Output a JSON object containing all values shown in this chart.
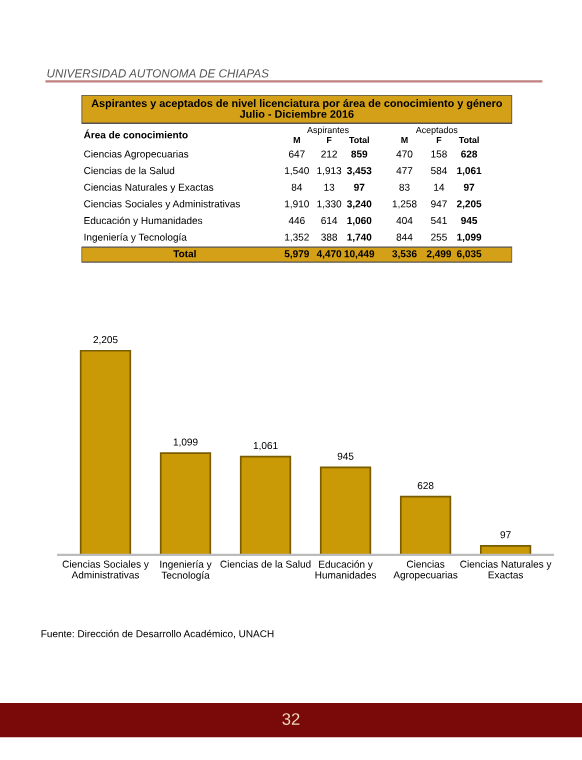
{
  "chart_data": [
    {
      "type": "other",
      "title": "Aspirantes y aceptados de nivel licenciatura por área de conocimiento y género",
      "subtitle": "Julio - Diciembre 2016",
      "annotations": [
        "UNIVERSIDAD AUTONOMA DE CHIAPAS",
        "Área de conocimiento",
        "Aspirantes",
        "Aceptados"
      ],
      "categories": [
        "M",
        "F",
        "Total",
        "M",
        "F",
        "Total"
      ],
      "y_categories": [
        "Ciencias Agropecuarias",
        "Ciencias de la Salud",
        "Ciencias Naturales y Exactas",
        "Ciencias Sociales y Administrativas",
        "Educación y Humanidades",
        "Ingeniería y Tecnología",
        "Total"
      ],
      "cell_labels": [
        [
          "647",
          "212",
          "859",
          "470",
          "158",
          "628"
        ],
        [
          "1,540",
          "1,913",
          "3,453",
          "477",
          "584",
          "1,061"
        ],
        [
          "84",
          "13",
          "97",
          "83",
          "14",
          "97"
        ],
        [
          "1,910",
          "1,330",
          "3,240",
          "1,258",
          "947",
          "2,205"
        ],
        [
          "446",
          "614",
          "1,060",
          "404",
          "541",
          "945"
        ],
        [
          "1,352",
          "388",
          "1,740",
          "844",
          "255",
          "1,099"
        ],
        [
          "5,979",
          "4,470",
          "10,449",
          "3,536",
          "2,499",
          "6,035"
        ]
      ],
      "color": "#d4a017"
    },
    {
      "type": "bar",
      "categories": [
        "Ciencias Sociales y\nAdministrativas",
        "Ingeniería y\nTecnología",
        "Ciencias de la Salud",
        "Educación y\nHumanidades",
        "Ciencias\nAgropecuarias",
        "Ciencias Naturales y\nExactas"
      ],
      "values": [
        2205,
        1099,
        1061,
        945,
        628,
        97
      ],
      "color": "#c99a06",
      "value_labels": [
        "2,205",
        "1,099",
        "1,061",
        "945",
        "628",
        "97"
      ],
      "annotations": [
        "Fuente: Dirección de Desarrollo Académico, UNACH",
        "32"
      ]
    }
  ]
}
